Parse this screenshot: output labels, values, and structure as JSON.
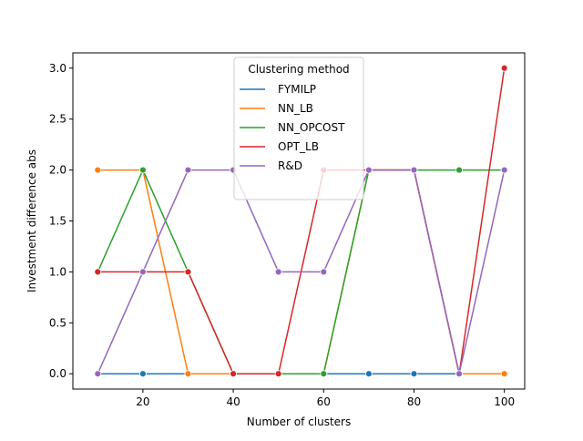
{
  "chart_data": {
    "type": "line",
    "title": "",
    "xlabel": "Number of clusters",
    "ylabel": "Investment difference abs",
    "x": [
      10,
      20,
      30,
      40,
      50,
      60,
      70,
      80,
      90,
      100
    ],
    "xlim": [
      4.5,
      104.5
    ],
    "ylim": [
      -0.15,
      3.15
    ],
    "xticks": [
      20,
      40,
      60,
      80,
      100
    ],
    "yticks": [
      0.0,
      0.5,
      1.0,
      1.5,
      2.0,
      2.5,
      3.0
    ],
    "xtick_labels": [
      "20",
      "40",
      "60",
      "80",
      "100"
    ],
    "ytick_labels": [
      "0.0",
      "0.5",
      "1.0",
      "1.5",
      "2.0",
      "2.5",
      "3.0"
    ],
    "grid": false,
    "markers": true,
    "legend": {
      "title": "Clustering method",
      "position": "upper-center"
    },
    "series": [
      {
        "name": "FYMILP",
        "color": "#1f77b4",
        "values": [
          0,
          0,
          0,
          0,
          0,
          0,
          0,
          0,
          0,
          0
        ]
      },
      {
        "name": "NN_LB",
        "color": "#ff7f0e",
        "values": [
          2,
          2,
          0,
          0,
          0,
          0,
          2,
          2,
          0,
          0
        ]
      },
      {
        "name": "NN_OPCOST",
        "color": "#2ca02c",
        "values": [
          1,
          2,
          1,
          0,
          0,
          0,
          2,
          2,
          2,
          2
        ]
      },
      {
        "name": "OPT_LB",
        "color": "#d62728",
        "values": [
          1,
          1,
          1,
          0,
          0,
          2,
          2,
          2,
          0,
          3
        ]
      },
      {
        "name": "R&D",
        "color": "#9467bd",
        "values": [
          0,
          1,
          2,
          2,
          1,
          1,
          2,
          2,
          0,
          2
        ]
      }
    ]
  }
}
